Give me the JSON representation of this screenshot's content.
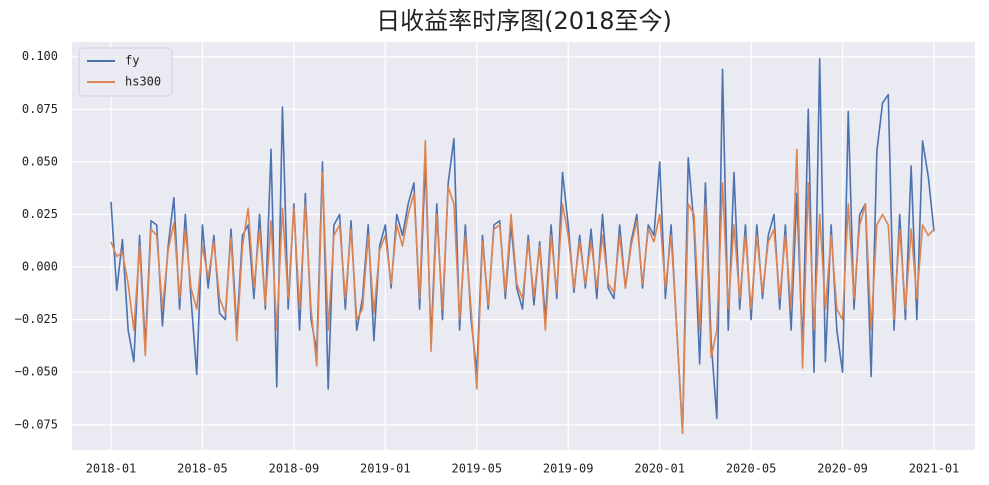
{
  "chart_data": {
    "type": "line",
    "title": "日收益率时序图(2018至今)",
    "x": [
      "2018-01",
      "2018-01",
      "2018-01",
      "2018-01",
      "2018-02",
      "2018-02",
      "2018-02",
      "2018-02",
      "2018-03",
      "2018-03",
      "2018-03",
      "2018-03",
      "2018-04",
      "2018-04",
      "2018-04",
      "2018-04",
      "2018-05",
      "2018-05",
      "2018-05",
      "2018-05",
      "2018-06",
      "2018-06",
      "2018-06",
      "2018-06",
      "2018-07",
      "2018-07",
      "2018-07",
      "2018-07",
      "2018-08",
      "2018-08",
      "2018-08",
      "2018-08",
      "2018-09",
      "2018-09",
      "2018-09",
      "2018-09",
      "2018-10",
      "2018-10",
      "2018-10",
      "2018-10",
      "2018-11",
      "2018-11",
      "2018-11",
      "2018-11",
      "2018-12",
      "2018-12",
      "2018-12",
      "2018-12",
      "2019-01",
      "2019-01",
      "2019-01",
      "2019-01",
      "2019-02",
      "2019-02",
      "2019-02",
      "2019-02",
      "2019-03",
      "2019-03",
      "2019-03",
      "2019-03",
      "2019-04",
      "2019-04",
      "2019-04",
      "2019-04",
      "2019-05",
      "2019-05",
      "2019-05",
      "2019-05",
      "2019-06",
      "2019-06",
      "2019-06",
      "2019-06",
      "2019-07",
      "2019-07",
      "2019-07",
      "2019-07",
      "2019-08",
      "2019-08",
      "2019-08",
      "2019-08",
      "2019-09",
      "2019-09",
      "2019-09",
      "2019-09",
      "2019-10",
      "2019-10",
      "2019-10",
      "2019-10",
      "2019-11",
      "2019-11",
      "2019-11",
      "2019-11",
      "2019-12",
      "2019-12",
      "2019-12",
      "2019-12",
      "2020-01",
      "2020-01",
      "2020-01",
      "2020-01",
      "2020-02",
      "2020-02",
      "2020-02",
      "2020-02",
      "2020-03",
      "2020-03",
      "2020-03",
      "2020-03",
      "2020-04",
      "2020-04",
      "2020-04",
      "2020-04",
      "2020-05",
      "2020-05",
      "2020-05",
      "2020-05",
      "2020-06",
      "2020-06",
      "2020-06",
      "2020-06",
      "2020-07",
      "2020-07",
      "2020-07",
      "2020-07",
      "2020-08",
      "2020-08",
      "2020-08",
      "2020-08",
      "2020-09",
      "2020-09",
      "2020-09",
      "2020-09",
      "2020-10",
      "2020-10",
      "2020-10",
      "2020-10",
      "2020-11",
      "2020-11",
      "2020-11",
      "2020-11",
      "2020-12",
      "2020-12",
      "2020-12",
      "2020-12",
      "2021-01"
    ],
    "series": [
      {
        "name": "fy",
        "color": "#4c72b0",
        "values": [
          0.031,
          -0.011,
          0.013,
          -0.03,
          -0.045,
          0.015,
          -0.038,
          0.022,
          0.02,
          -0.028,
          0.01,
          0.033,
          -0.02,
          0.025,
          -0.015,
          -0.051,
          0.02,
          -0.01,
          0.015,
          -0.022,
          -0.025,
          0.018,
          -0.03,
          0.015,
          0.02,
          -0.015,
          0.025,
          -0.02,
          0.056,
          -0.057,
          0.076,
          -0.02,
          0.03,
          -0.03,
          0.035,
          -0.025,
          -0.04,
          0.05,
          -0.058,
          0.02,
          0.025,
          -0.02,
          0.022,
          -0.03,
          -0.015,
          0.02,
          -0.035,
          0.01,
          0.02,
          -0.01,
          0.025,
          0.015,
          0.03,
          0.04,
          -0.02,
          0.05,
          -0.035,
          0.03,
          -0.025,
          0.04,
          0.061,
          -0.03,
          0.02,
          -0.025,
          -0.05,
          0.015,
          -0.02,
          0.02,
          0.022,
          -0.015,
          0.02,
          -0.01,
          -0.02,
          0.015,
          -0.018,
          0.012,
          -0.025,
          0.02,
          -0.015,
          0.045,
          0.02,
          -0.012,
          0.015,
          -0.01,
          0.018,
          -0.015,
          0.025,
          -0.01,
          -0.015,
          0.02,
          -0.01,
          0.012,
          0.025,
          -0.01,
          0.02,
          0.015,
          0.05,
          -0.015,
          0.02,
          -0.03,
          -0.079,
          0.052,
          0.02,
          -0.046,
          0.04,
          -0.035,
          -0.072,
          0.094,
          -0.03,
          0.045,
          -0.02,
          0.02,
          -0.025,
          0.02,
          -0.015,
          0.015,
          0.025,
          -0.02,
          0.02,
          -0.03,
          0.035,
          -0.04,
          0.075,
          -0.05,
          0.099,
          -0.045,
          0.02,
          -0.03,
          -0.05,
          0.074,
          -0.02,
          0.025,
          0.03,
          -0.052,
          0.055,
          0.078,
          0.082,
          -0.03,
          0.025,
          -0.025,
          0.048,
          -0.025,
          0.06,
          0.043,
          0.017
        ]
      },
      {
        "name": "hs300",
        "color": "#dd8452",
        "values": [
          0.012,
          0.005,
          0.007,
          -0.008,
          -0.03,
          0.01,
          -0.042,
          0.018,
          0.015,
          -0.02,
          0.008,
          0.021,
          -0.015,
          0.018,
          -0.01,
          -0.02,
          0.01,
          -0.005,
          0.012,
          -0.015,
          -0.022,
          0.014,
          -0.035,
          0.01,
          0.028,
          -0.01,
          0.018,
          -0.018,
          0.022,
          -0.03,
          0.028,
          -0.015,
          0.028,
          -0.02,
          0.03,
          -0.02,
          -0.047,
          0.045,
          -0.03,
          0.015,
          0.02,
          -0.015,
          0.018,
          -0.025,
          -0.02,
          0.015,
          -0.022,
          0.008,
          0.015,
          -0.008,
          0.02,
          0.01,
          0.025,
          0.035,
          -0.015,
          0.06,
          -0.04,
          0.025,
          -0.02,
          0.038,
          0.03,
          -0.025,
          0.015,
          -0.02,
          -0.058,
          0.012,
          -0.018,
          0.018,
          0.02,
          -0.012,
          0.025,
          -0.008,
          -0.015,
          0.012,
          -0.014,
          0.01,
          -0.03,
          0.015,
          -0.012,
          0.03,
          0.015,
          -0.01,
          0.012,
          -0.008,
          0.012,
          -0.01,
          0.015,
          -0.008,
          -0.012,
          0.015,
          -0.01,
          0.01,
          0.022,
          -0.008,
          0.018,
          0.012,
          0.025,
          -0.01,
          0.015,
          -0.03,
          -0.079,
          0.03,
          0.025,
          -0.03,
          0.03,
          -0.043,
          -0.03,
          0.04,
          -0.02,
          0.02,
          -0.015,
          0.015,
          -0.02,
          0.015,
          -0.012,
          0.012,
          0.018,
          -0.015,
          0.015,
          -0.02,
          0.056,
          -0.048,
          0.04,
          -0.03,
          0.025,
          -0.02,
          0.015,
          -0.02,
          -0.025,
          0.03,
          -0.015,
          0.02,
          0.03,
          -0.03,
          0.02,
          0.025,
          0.02,
          -0.025,
          0.018,
          -0.02,
          0.018,
          -0.015,
          0.02,
          0.015,
          0.018
        ]
      }
    ],
    "xticks": [
      "2018-01",
      "2018-05",
      "2018-09",
      "2019-01",
      "2019-05",
      "2019-09",
      "2020-01",
      "2020-05",
      "2020-09",
      "2021-01"
    ],
    "ylim": [
      -0.087,
      0.107
    ],
    "yticks": [
      {
        "value": 0.1,
        "label": "0.100"
      },
      {
        "value": 0.075,
        "label": "0.075"
      },
      {
        "value": 0.05,
        "label": "0.050"
      },
      {
        "value": 0.025,
        "label": "0.025"
      },
      {
        "value": 0,
        "label": "0.000"
      },
      {
        "value": -0.025,
        "label": "−0.025"
      },
      {
        "value": -0.05,
        "label": "−0.050"
      },
      {
        "value": -0.075,
        "label": "−0.075"
      }
    ],
    "grid": true,
    "legend": "upper left"
  }
}
